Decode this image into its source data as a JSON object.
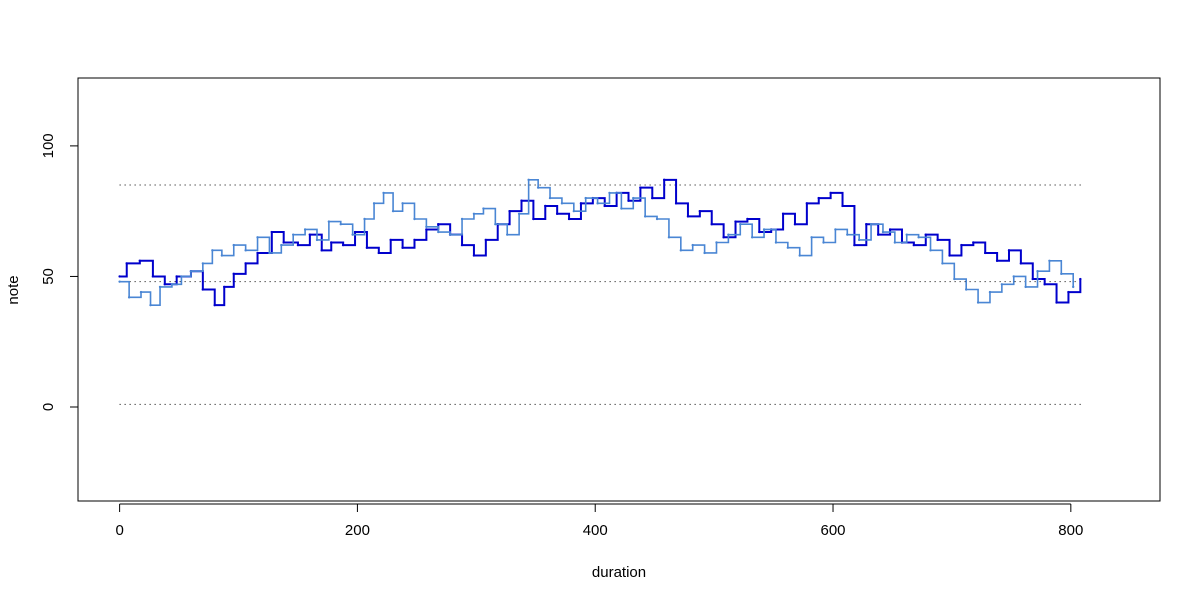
{
  "chart_data": {
    "type": "line",
    "title": "",
    "xlabel": "duration",
    "ylabel": "note",
    "xlim": [
      -35,
      875
    ],
    "ylim": [
      -36,
      126
    ],
    "x_ticks": [
      0,
      200,
      400,
      600,
      800
    ],
    "y_ticks": [
      0,
      50,
      100
    ],
    "grid": false,
    "legend": "none",
    "reference_lines": [
      {
        "y": 85,
        "x_range": [
          0,
          810
        ],
        "style": "dotted",
        "color": "#000000"
      },
      {
        "y": 48,
        "x_range": [
          0,
          810
        ],
        "style": "dotted",
        "color": "#000000"
      },
      {
        "y": 1,
        "x_range": [
          0,
          810
        ],
        "style": "dotted",
        "color": "#000000"
      }
    ],
    "series": [
      {
        "color": "#0000cc",
        "line_width": 2,
        "step": true,
        "x": [
          0,
          6,
          17,
          28,
          38,
          48,
          60,
          70,
          80,
          88,
          96,
          106,
          116,
          128,
          138,
          150,
          160,
          170,
          178,
          188,
          198,
          208,
          218,
          228,
          238,
          248,
          258,
          268,
          278,
          288,
          298,
          308,
          318,
          328,
          338,
          348,
          358,
          368,
          378,
          388,
          398,
          408,
          418,
          428,
          438,
          448,
          458,
          468,
          478,
          488,
          498,
          508,
          518,
          528,
          538,
          548,
          558,
          568,
          578,
          588,
          598,
          608,
          618,
          628,
          638,
          648,
          658,
          668,
          678,
          688,
          698,
          708,
          718,
          728,
          738,
          748,
          758,
          768,
          778,
          788,
          798,
          808
        ],
        "y": [
          50,
          55,
          56,
          50,
          47,
          50,
          52,
          45,
          39,
          46,
          51,
          55,
          59,
          67,
          63,
          62,
          66,
          60,
          63,
          62,
          67,
          61,
          59,
          64,
          61,
          64,
          68,
          70,
          66,
          62,
          58,
          64,
          70,
          75,
          79,
          72,
          77,
          74,
          72,
          78,
          80,
          77,
          82,
          79,
          84,
          80,
          87,
          78,
          73,
          75,
          70,
          65,
          71,
          72,
          67,
          68,
          74,
          70,
          78,
          80,
          82,
          77,
          62,
          70,
          66,
          68,
          63,
          62,
          66,
          64,
          58,
          62,
          63,
          59,
          56,
          60,
          55,
          49,
          47,
          40,
          44,
          49
        ]
      },
      {
        "color": "#4a86d4",
        "line_width": 1.6,
        "step": true,
        "x": [
          0,
          8,
          18,
          26,
          34,
          44,
          52,
          60,
          70,
          78,
          86,
          96,
          106,
          116,
          126,
          136,
          146,
          156,
          166,
          176,
          186,
          196,
          206,
          214,
          222,
          230,
          238,
          248,
          258,
          268,
          278,
          288,
          298,
          306,
          316,
          326,
          336,
          344,
          352,
          362,
          372,
          382,
          392,
          402,
          412,
          422,
          432,
          442,
          452,
          462,
          472,
          482,
          492,
          502,
          512,
          522,
          532,
          542,
          552,
          562,
          572,
          582,
          592,
          602,
          612,
          622,
          632,
          642,
          652,
          662,
          672,
          682,
          692,
          702,
          712,
          722,
          732,
          742,
          752,
          762,
          772,
          782,
          792,
          802
        ],
        "y": [
          48,
          42,
          44,
          39,
          46,
          47,
          50,
          52,
          55,
          60,
          58,
          62,
          60,
          65,
          59,
          62,
          66,
          68,
          64,
          71,
          70,
          66,
          72,
          78,
          82,
          75,
          78,
          72,
          69,
          67,
          66,
          72,
          74,
          76,
          70,
          66,
          74,
          87,
          84,
          80,
          78,
          75,
          80,
          78,
          82,
          76,
          80,
          73,
          72,
          65,
          60,
          62,
          59,
          63,
          66,
          70,
          65,
          68,
          63,
          61,
          58,
          65,
          63,
          68,
          66,
          64,
          70,
          67,
          63,
          66,
          65,
          60,
          55,
          49,
          45,
          40,
          44,
          47,
          50,
          46,
          52,
          56,
          51,
          46
        ]
      }
    ]
  }
}
